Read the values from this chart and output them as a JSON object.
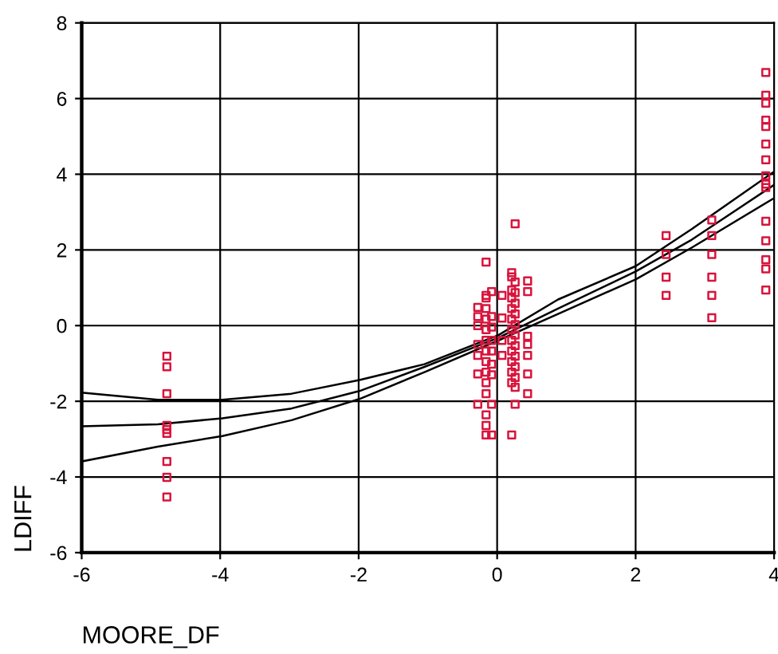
{
  "chart_data": {
    "type": "scatter",
    "xlabel": "MOORE_DF",
    "ylabel": "LDIFF",
    "xlim": [
      -6,
      4
    ],
    "ylim": [
      -6,
      8
    ],
    "xticks": [
      -6,
      -4,
      -2,
      0,
      2,
      4
    ],
    "yticks": [
      -6,
      -4,
      -2,
      0,
      2,
      4,
      6,
      8
    ],
    "grid": true,
    "series": [
      {
        "color": "#d8143c",
        "marker": "square",
        "x": [
          -4.77,
          -4.77,
          -4.77,
          -4.77,
          -4.77,
          -4.77,
          -4.77,
          -4.77,
          -4.77,
          2.44,
          2.44,
          2.44,
          2.44,
          3.1,
          3.1,
          3.1,
          3.1,
          3.1,
          3.1,
          3.88,
          3.88,
          3.88,
          3.88,
          3.88,
          3.88,
          3.88,
          3.88,
          3.88,
          3.88,
          3.88,
          3.88,
          3.88,
          3.88,
          3.88,
          -0.28,
          -0.28,
          -0.28,
          -0.28,
          -0.28,
          -0.28,
          -0.28,
          -0.16,
          -0.16,
          -0.16,
          -0.16,
          -0.16,
          -0.16,
          -0.16,
          -0.16,
          -0.16,
          -0.16,
          -0.16,
          -0.16,
          -0.16,
          -0.16,
          -0.16,
          -0.08,
          -0.08,
          -0.08,
          -0.08,
          -0.08,
          -0.08,
          -0.08,
          -0.08,
          -0.08,
          0.07,
          0.07,
          0.07,
          0.07,
          0.21,
          0.21,
          0.21,
          0.21,
          0.21,
          0.21,
          0.21,
          0.21,
          0.21,
          0.21,
          0.21,
          0.21,
          0.21,
          0.26,
          0.26,
          0.26,
          0.26,
          0.26,
          0.26,
          0.26,
          0.26,
          0.26,
          0.26,
          0.26,
          0.26,
          0.26,
          0.44,
          0.44,
          0.44,
          0.44,
          0.44,
          0.44,
          0.44
        ],
        "values": [
          -0.81,
          -1.09,
          -1.8,
          -2.64,
          -2.75,
          -2.85,
          -3.59,
          -4.01,
          -4.53,
          2.38,
          1.88,
          1.28,
          0.8,
          2.79,
          2.38,
          1.88,
          1.28,
          0.8,
          0.21,
          6.69,
          6.09,
          5.88,
          5.43,
          5.26,
          4.8,
          4.38,
          3.96,
          3.74,
          3.65,
          2.76,
          2.24,
          1.74,
          1.5,
          0.94,
          0.48,
          0.24,
          0,
          -0.5,
          -0.79,
          -1.28,
          -2.08,
          1.68,
          0.8,
          0.73,
          0.45,
          0.17,
          -0.11,
          -0.39,
          -0.67,
          -0.95,
          -1.23,
          -1.51,
          -1.8,
          -2.36,
          -2.64,
          -2.89,
          0.9,
          0.24,
          -0.04,
          -0.39,
          -0.67,
          -1.02,
          -1.3,
          -2.08,
          -2.89,
          0.8,
          0.2,
          -0.39,
          -0.79,
          1.4,
          1.29,
          0.94,
          0.73,
          0.45,
          0.17,
          -0.11,
          -0.39,
          -0.67,
          -0.95,
          -1.23,
          -1.51,
          -2.89,
          2.69,
          1.15,
          0.87,
          0.59,
          0.31,
          0.03,
          -0.25,
          -0.53,
          -0.81,
          -1.09,
          -1.37,
          -1.63,
          -2.08,
          1.18,
          0.9,
          -0.28,
          -0.5,
          -0.79,
          -1.28,
          -1.8
        ]
      },
      {
        "type": "line",
        "color": "#000000",
        "x": [
          -6,
          -4.9,
          -3.97,
          -2.97,
          -1.99,
          -1.05,
          0.02,
          0.88,
          2.0,
          2.81,
          4.0
        ],
        "values": [
          -1.77,
          -1.96,
          -1.96,
          -1.8,
          -1.44,
          -1.02,
          -0.25,
          0.69,
          1.57,
          2.55,
          4.07
        ]
      },
      {
        "type": "line",
        "color": "#000000",
        "x": [
          -6,
          -4.9,
          -3.97,
          -2.97,
          -1.99,
          -1.05,
          0.02,
          0.88,
          2.0,
          2.81,
          4.0
        ],
        "values": [
          -2.66,
          -2.61,
          -2.45,
          -2.19,
          -1.73,
          -1.09,
          -0.32,
          0.45,
          1.43,
          2.27,
          3.72
        ]
      },
      {
        "type": "line",
        "color": "#000000",
        "x": [
          -6,
          -4.9,
          -3.97,
          -2.97,
          -1.99,
          -1.05,
          0.02,
          0.88,
          2.0,
          2.81,
          4.0
        ],
        "values": [
          -3.59,
          -3.2,
          -2.92,
          -2.5,
          -1.94,
          -1.23,
          -0.39,
          0.31,
          1.22,
          2.06,
          3.37
        ]
      }
    ]
  }
}
